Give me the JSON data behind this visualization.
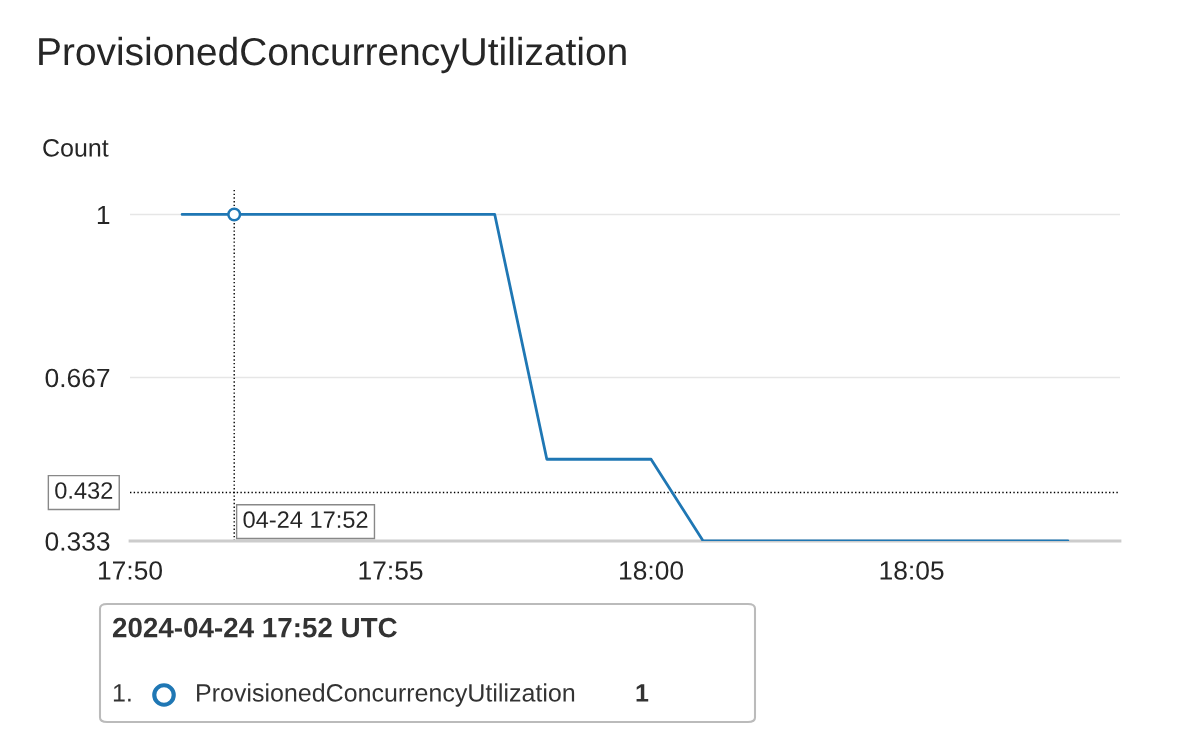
{
  "chart_data": {
    "type": "line",
    "title": "ProvisionedConcurrencyUtilization",
    "ylabel": "Count",
    "x": [
      "2024-04-24T17:51",
      "2024-04-24T17:57",
      "2024-04-24T17:58",
      "2024-04-24T18:00",
      "2024-04-24T18:01",
      "2024-04-24T18:08"
    ],
    "series": [
      {
        "name": "ProvisionedConcurrencyUtilization",
        "color": "#1f77b4",
        "values": [
          1,
          1,
          0.5,
          0.5,
          0.333,
          0.333
        ]
      },
      {
        "type": "scatter",
        "color": "#1f77b4",
        "marker": "circle",
        "x": [
          "2024-04-24T17:52"
        ],
        "values": [
          1
        ]
      }
    ],
    "xlim": [
      "2024-04-24T17:50",
      "2024-04-24T18:09"
    ],
    "xticks": [
      {
        "value": "2024-04-24T17:50",
        "label": "17:50"
      },
      {
        "value": "2024-04-24T17:55",
        "label": "17:55"
      },
      {
        "value": "2024-04-24T18:00",
        "label": "18:00"
      },
      {
        "value": "2024-04-24T18:05",
        "label": "18:05"
      }
    ],
    "ylim": [
      0.333,
      1.05
    ],
    "yticks": [
      0.333,
      0.667,
      1
    ],
    "grid": "y",
    "ref_lines": [
      {
        "axis": "y",
        "value": 0.432,
        "label": "0.432",
        "color": "#000000",
        "line_style": "dotted"
      },
      {
        "axis": "x",
        "value": "2024-04-24T17:52",
        "label": "04-24 17:52",
        "color": "#000000",
        "line_style": "dotted"
      }
    ],
    "annotations": [
      "2024-04-24 17:52 UTC",
      "1.",
      "1"
    ],
    "legend": "bottom"
  }
}
